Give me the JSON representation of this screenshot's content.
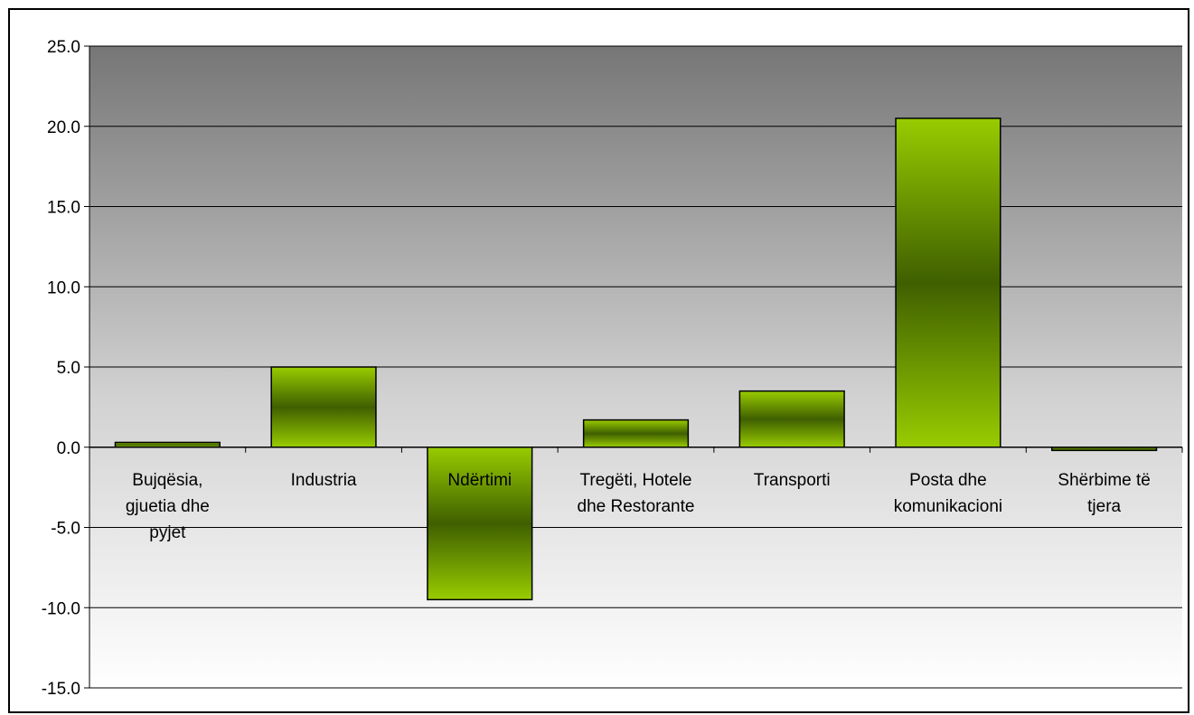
{
  "chart_data": {
    "type": "bar",
    "title": "",
    "xlabel": "",
    "ylabel": "",
    "categories": [
      [
        "Bujqësia,",
        "gjuetia dhe",
        "pyjet"
      ],
      [
        "Industria"
      ],
      [
        "Ndërtimi"
      ],
      [
        "Tregëti, Hotele",
        "dhe Restorante"
      ],
      [
        "Transporti"
      ],
      [
        "Posta dhe",
        "komunikacioni"
      ],
      [
        "Shërbime të",
        "tjera"
      ]
    ],
    "values": [
      0.3,
      5.0,
      -9.5,
      1.7,
      3.5,
      20.5,
      -0.2
    ],
    "ylim": [
      -15.0,
      25.0
    ],
    "yticks": [
      "25.0",
      "20.0",
      "15.0",
      "10.0",
      "5.0",
      "0.0",
      "-5.0",
      "-10.0",
      "-15.0"
    ],
    "grid": true,
    "legend": "none",
    "colors": {
      "bar_edge": "#99cc00",
      "bar_center": "#3f5f00",
      "plot_top": "#767676",
      "plot_bottom": "#ffffff"
    }
  }
}
